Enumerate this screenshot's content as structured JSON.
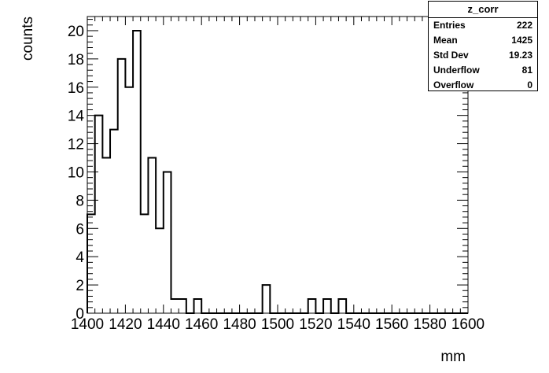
{
  "chart_data": {
    "type": "bar",
    "title": "",
    "xlabel": "mm",
    "ylabel": "counts",
    "xlim": [
      1400,
      1600
    ],
    "ylim": [
      0,
      21
    ],
    "bin_width": 4,
    "x_ticks": [
      1400,
      1420,
      1440,
      1460,
      1480,
      1500,
      1520,
      1540,
      1560,
      1580,
      1600
    ],
    "y_ticks": [
      0,
      2,
      4,
      6,
      8,
      10,
      12,
      14,
      16,
      18,
      20
    ],
    "bin_low_edges": [
      1400,
      1404,
      1408,
      1412,
      1416,
      1420,
      1424,
      1428,
      1432,
      1436,
      1440,
      1444,
      1448,
      1452,
      1456,
      1460,
      1464,
      1468,
      1472,
      1476,
      1480,
      1484,
      1488,
      1492,
      1496,
      1500,
      1504,
      1508,
      1512,
      1516,
      1520,
      1524,
      1528,
      1532,
      1536,
      1540,
      1544,
      1548,
      1552,
      1556,
      1560,
      1564,
      1568,
      1572,
      1576,
      1580,
      1584,
      1588,
      1592,
      1596
    ],
    "values": [
      7,
      14,
      11,
      13,
      18,
      16,
      20,
      7,
      11,
      6,
      10,
      1,
      1,
      0,
      1,
      0,
      0,
      0,
      0,
      0,
      0,
      0,
      0,
      2,
      0,
      0,
      0,
      0,
      0,
      1,
      0,
      1,
      0,
      1,
      0,
      0,
      0,
      0,
      0,
      0,
      0,
      0,
      0,
      0,
      0,
      0,
      0,
      0,
      0,
      0
    ],
    "grid": false,
    "legend": "none"
  },
  "stats": {
    "title": "z_corr",
    "rows": [
      {
        "label": "Entries",
        "value": "222"
      },
      {
        "label": "Mean",
        "value": "1425"
      },
      {
        "label": "Std Dev",
        "value": "19.23"
      },
      {
        "label": "Underflow",
        "value": "81"
      },
      {
        "label": "Overflow",
        "value": "0"
      }
    ]
  }
}
